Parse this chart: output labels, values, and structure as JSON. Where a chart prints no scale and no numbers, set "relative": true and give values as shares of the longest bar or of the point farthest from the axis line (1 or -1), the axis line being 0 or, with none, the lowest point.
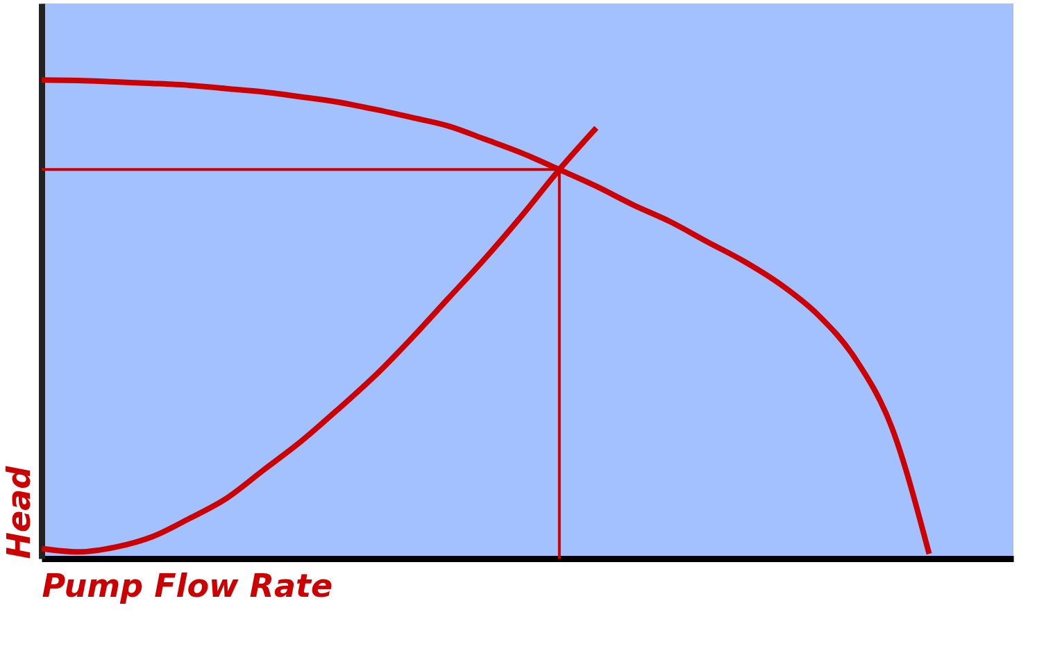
{
  "chart_data": {
    "type": "line",
    "relative": true,
    "xlabel": "Pump Flow Rate",
    "ylabel": "Head",
    "categories": [
      null,
      null,
      null,
      null,
      null,
      null,
      null,
      null,
      null,
      null,
      null,
      null,
      null,
      null,
      null,
      null,
      null,
      null,
      null,
      null,
      null,
      null,
      null,
      null,
      null
    ],
    "series": [
      {
        "color": "#cc0000",
        "values": [
          1.0,
          0.999,
          0.996,
          0.993,
          0.989,
          0.982,
          0.975,
          0.965,
          0.954,
          0.939,
          0.922,
          0.904,
          0.876,
          0.847,
          0.813,
          0.778,
          0.739,
          0.704,
          0.662,
          0.621,
          0.572,
          0.509,
          0.418,
          0.272,
          0.01
        ]
      },
      {
        "color": "#cc0000",
        "values": [
          0.021,
          0.014,
          0.024,
          0.046,
          0.084,
          0.126,
          0.185,
          0.244,
          0.311,
          0.381,
          0.46,
          0.544,
          0.628,
          0.718,
          0.813,
          0.9,
          null,
          null,
          null,
          null,
          null,
          null,
          null,
          null,
          null
        ]
      }
    ],
    "ref_lines": [
      {
        "axis": "y",
        "value": 0.813,
        "color": "#cc0000"
      }
    ]
  }
}
